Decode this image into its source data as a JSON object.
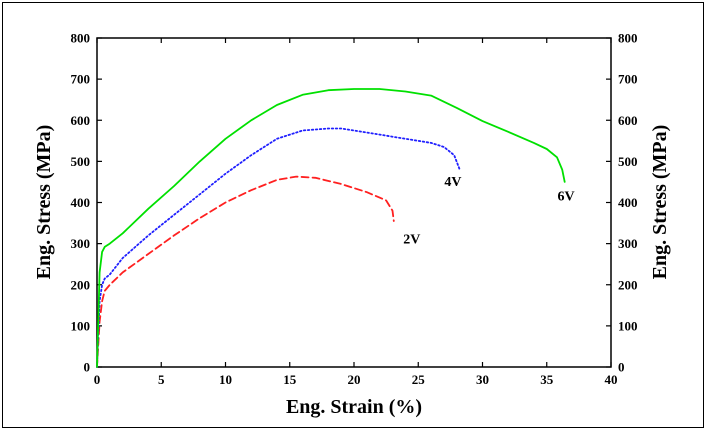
{
  "chart_data": {
    "type": "line",
    "xlabel": "Eng. Strain (%)",
    "ylabel": "Eng. Stress (MPa)",
    "ylabel_right": "Eng. Stress (MPa)",
    "xlim": [
      0,
      40
    ],
    "ylim": [
      0,
      800
    ],
    "xticks": [
      0,
      5,
      10,
      15,
      20,
      25,
      30,
      35,
      40
    ],
    "xtick_labels": [
      "0",
      "5",
      "10",
      "15",
      "20",
      "25",
      "30",
      "35",
      "40"
    ],
    "yticks": [
      0,
      100,
      200,
      300,
      400,
      500,
      600,
      700,
      800
    ],
    "ytick_labels": [
      "0",
      "100",
      "200",
      "300",
      "400",
      "500",
      "600",
      "700",
      "800"
    ],
    "grid": false,
    "series": [
      {
        "name": "2V",
        "color": "#ff2020",
        "style": "dashed",
        "x": [
          0,
          0.2,
          0.4,
          0.6,
          1,
          2,
          4,
          6,
          8,
          10,
          12,
          14,
          15.5,
          17,
          19,
          21,
          22.5,
          23,
          23.1
        ],
        "y": [
          0,
          110,
          160,
          185,
          200,
          230,
          275,
          320,
          362,
          400,
          430,
          455,
          463,
          460,
          445,
          425,
          405,
          380,
          355
        ]
      },
      {
        "name": "4V",
        "color": "#2020ff",
        "style": "dotted",
        "x": [
          0,
          0.2,
          0.4,
          0.6,
          1,
          2,
          4,
          6,
          8,
          10,
          12,
          14,
          16,
          18,
          19,
          20,
          22,
          24,
          26,
          27,
          27.8,
          28.2
        ],
        "y": [
          0,
          160,
          200,
          215,
          225,
          265,
          320,
          370,
          420,
          470,
          515,
          555,
          575,
          580,
          580,
          575,
          565,
          555,
          545,
          535,
          515,
          482
        ]
      },
      {
        "name": "6V",
        "color": "#00e000",
        "style": "solid",
        "x": [
          0,
          0.2,
          0.4,
          0.6,
          1,
          2,
          4,
          6,
          8,
          10,
          12,
          14,
          16,
          18,
          20,
          22,
          24,
          26,
          28,
          30,
          32,
          34,
          35,
          35.8,
          36.2,
          36.4
        ],
        "y": [
          0,
          230,
          280,
          292,
          300,
          325,
          385,
          440,
          500,
          555,
          600,
          637,
          662,
          673,
          676,
          676,
          670,
          660,
          630,
          598,
          572,
          545,
          530,
          510,
          480,
          450
        ]
      }
    ],
    "annotations": [
      {
        "text": "2V",
        "x": 24.5,
        "y": 300
      },
      {
        "text": "4V",
        "x": 27.7,
        "y": 440
      },
      {
        "text": "6V",
        "x": 36.5,
        "y": 405
      }
    ]
  }
}
